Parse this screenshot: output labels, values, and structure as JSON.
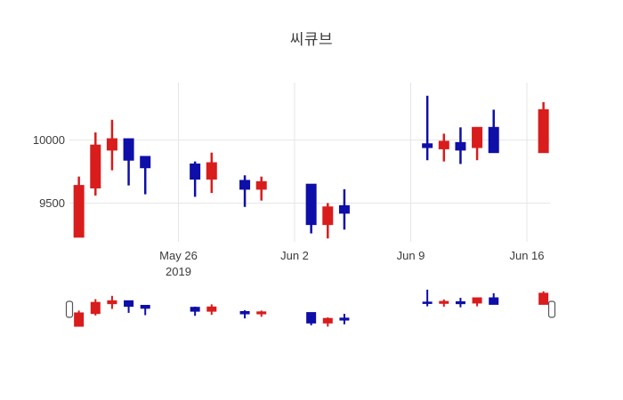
{
  "title": "씨큐브",
  "colors": {
    "increasing": "#d91c1c",
    "decreasing": "#0e0ea8",
    "grid": "#e6e6e6",
    "text": "#3b3b3b",
    "background": "#ffffff",
    "handle_fill": "#ffffff",
    "handle_border": "#555555"
  },
  "y_axis": {
    "ticks": [
      {
        "label": "10000",
        "value": 10000
      },
      {
        "label": "9500",
        "value": 9500
      }
    ]
  },
  "x_axis": {
    "ticks": [
      {
        "label": "May 26",
        "sublabel": "2019",
        "date": "2019-05-26"
      },
      {
        "label": "Jun 2",
        "date": "2019-06-02"
      },
      {
        "label": "Jun 9",
        "date": "2019-06-09"
      },
      {
        "label": "Jun 16",
        "date": "2019-06-16"
      }
    ]
  },
  "rangeslider": {
    "visible": true,
    "handles": [
      "left",
      "right"
    ]
  },
  "chart_data": {
    "type": "candlestick",
    "title": "씨큐브",
    "x": [
      "2019-05-20",
      "2019-05-21",
      "2019-05-22",
      "2019-05-23",
      "2019-05-24",
      "2019-05-27",
      "2019-05-28",
      "2019-05-30",
      "2019-05-31",
      "2019-06-03",
      "2019-06-04",
      "2019-06-05",
      "2019-06-10",
      "2019-06-11",
      "2019-06-12",
      "2019-06-13",
      "2019-06-14",
      "2019-06-17"
    ],
    "open": [
      9230,
      9620,
      9920,
      10010,
      9870,
      9810,
      9690,
      9680,
      9610,
      9650,
      9330,
      9480,
      9970,
      9930,
      9980,
      9940,
      10100,
      9900
    ],
    "high": [
      9710,
      10060,
      10160,
      10010,
      9870,
      9830,
      9900,
      9720,
      9710,
      9650,
      9500,
      9610,
      10350,
      10050,
      10100,
      10100,
      10240,
      10300
    ],
    "low": [
      9230,
      9560,
      9760,
      9640,
      9570,
      9550,
      9580,
      9470,
      9520,
      9260,
      9220,
      9290,
      9840,
      9830,
      9810,
      9840,
      9900,
      9900
    ],
    "close": [
      9640,
      9960,
      10010,
      9840,
      9780,
      9690,
      9820,
      9610,
      9670,
      9330,
      9470,
      9420,
      9940,
      9990,
      9920,
      10100,
      9900,
      10240
    ],
    "increasing_color": "#d91c1c",
    "decreasing_color": "#0e0ea8",
    "xlabel": "",
    "ylabel": "",
    "ylim": [
      9190,
      10455
    ],
    "xlim": [
      "2019-05-19",
      "2019-06-18"
    ],
    "grid": true,
    "legend": "none",
    "rangeslider": true
  }
}
